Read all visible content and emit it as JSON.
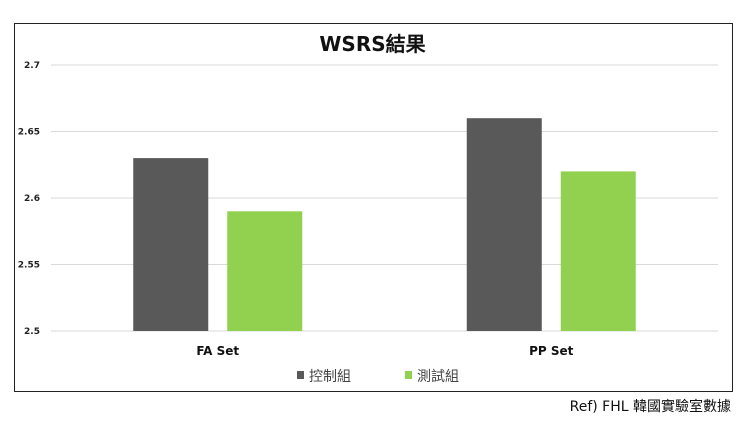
{
  "chart_data": {
    "type": "bar",
    "title": "WSRS結果",
    "categories": [
      "FA Set",
      "PP Set"
    ],
    "series": [
      {
        "name": "控制組",
        "values": [
          2.63,
          2.66
        ],
        "color": "#595959"
      },
      {
        "name": "測試組",
        "values": [
          2.59,
          2.62
        ],
        "color": "#92d050"
      }
    ],
    "ylim": [
      2.5,
      2.7
    ],
    "yticks": [
      "2.5",
      "2.55",
      "2.6",
      "2.65",
      "2.7"
    ],
    "grid": true,
    "legend": "bottom"
  },
  "source": "Ref) FHL 韓國實驗室數據"
}
